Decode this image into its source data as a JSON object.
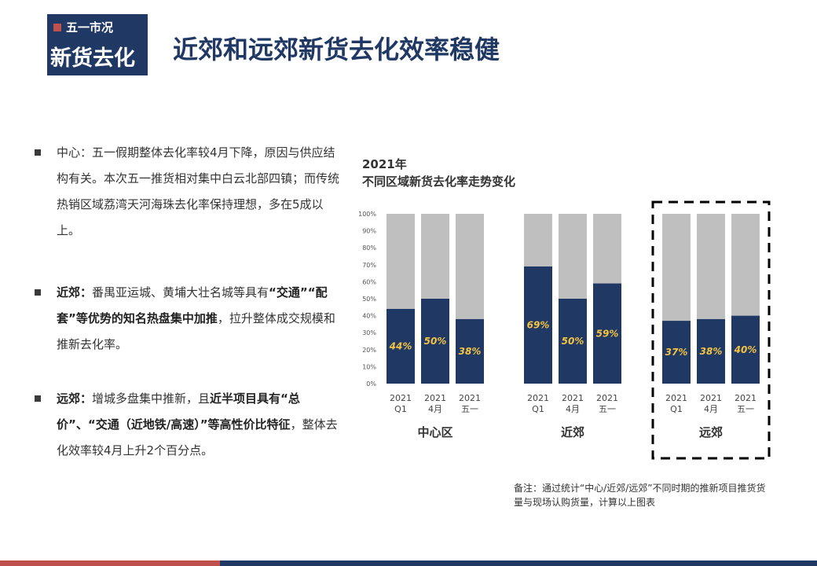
{
  "badge": {
    "top": "五一市况",
    "main": "新货去化"
  },
  "title": "近郊和远郊新货去化效率稳健",
  "bullets": [
    {
      "label": "中心",
      "text": "：五一假期整体去化率较4月下降，原因与供应结构有关。本次五一推货相对集中白云北部四镇；而传统热销区域荔湾天河海珠去化率保持理想，多在5成以上。"
    },
    {
      "label": "近郊：",
      "text_a": "番禺亚运城、黄埔大壮名城等具有",
      "bold_b": "“交通”“配套”等优势的知名热盘集中加推",
      "text_c": "，拉升整体成交规模和推新去化率。"
    },
    {
      "label": "远郊：",
      "text_a": "增城多盘集中推新，且",
      "bold_b": "近半项目具有“总价”、“交通（近地铁/高速）”等高性价比特征",
      "text_c": "，整体去化效率较4月上升2个百分点。"
    }
  ],
  "chart_title_line1": "2021年",
  "chart_title_line2": "不同区域新货去化率走势变化",
  "chart_data": {
    "type": "bar",
    "stacked": true,
    "ylim": [
      0,
      100
    ],
    "yticks": [
      "0%",
      "10%",
      "20%",
      "30%",
      "40%",
      "50%",
      "60%",
      "70%",
      "80%",
      "90%",
      "100%"
    ],
    "groups": [
      {
        "name": "中心区",
        "categories": [
          [
            "2021",
            "Q1"
          ],
          [
            "2021",
            "4月"
          ],
          [
            "2021",
            "五一"
          ]
        ],
        "values": [
          44,
          50,
          38
        ],
        "labels": [
          "44%",
          "50%",
          "38%"
        ]
      },
      {
        "name": "近郊",
        "categories": [
          [
            "2021",
            "Q1"
          ],
          [
            "2021",
            "4月"
          ],
          [
            "2021",
            "五一"
          ]
        ],
        "values": [
          69,
          50,
          59
        ],
        "labels": [
          "69%",
          "50%",
          "59%"
        ]
      },
      {
        "name": "远郊",
        "categories": [
          [
            "2021",
            "Q1"
          ],
          [
            "2021",
            "4月"
          ],
          [
            "2021",
            "五一"
          ]
        ],
        "values": [
          37,
          38,
          40
        ],
        "labels": [
          "37%",
          "38%",
          "40%"
        ],
        "highlighted": true
      }
    ],
    "colors": {
      "value": "#1f3864",
      "remainder": "#bfbfbf",
      "label": "#f5c342"
    }
  },
  "note": "备注：通过统计“中心/近郊/远郊”不同时期的推新项目推货货量与现场认购货量，计算以上图表"
}
